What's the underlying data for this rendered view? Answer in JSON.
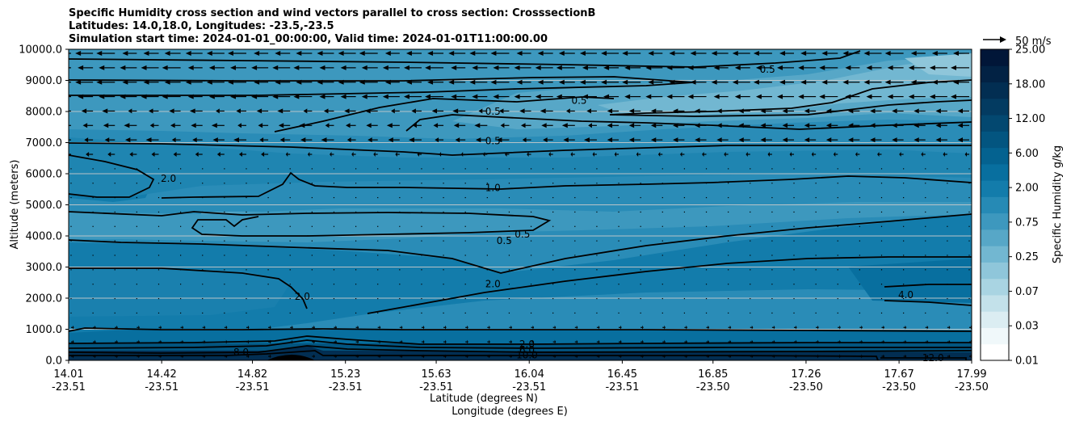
{
  "chart_data": {
    "type": "heatmap",
    "title_lines": [
      "Specific Humidity cross section and wind vectors parallel to cross section: CrosssectionB",
      "Latitudes: 14.0,18.0, Longitudes: -23.5,-23.5",
      "Simulation start time: 2024-01-01_00:00:00, Valid time: 2024-01-01T11:00:00.00"
    ],
    "xlabel_lat": "Latitude (degrees N)",
    "xlabel_lon": "Longitude (degrees E)",
    "ylabel": "Altitude (meters)",
    "x_ticks": [
      {
        "lat": "14.01",
        "lon": "-23.51"
      },
      {
        "lat": "14.42",
        "lon": "-23.51"
      },
      {
        "lat": "14.82",
        "lon": "-23.51"
      },
      {
        "lat": "15.23",
        "lon": "-23.51"
      },
      {
        "lat": "15.63",
        "lon": "-23.51"
      },
      {
        "lat": "16.04",
        "lon": "-23.51"
      },
      {
        "lat": "16.45",
        "lon": "-23.51"
      },
      {
        "lat": "16.85",
        "lon": "-23.50"
      },
      {
        "lat": "17.26",
        "lon": "-23.50"
      },
      {
        "lat": "17.67",
        "lon": "-23.50"
      },
      {
        "lat": "17.99",
        "lon": "-23.50"
      }
    ],
    "y_ticks": [
      "0.0",
      "1000.0",
      "2000.0",
      "3000.0",
      "4000.0",
      "5000.0",
      "6000.0",
      "7000.0",
      "8000.0",
      "9000.0",
      "10000.0"
    ],
    "ylim": [
      0,
      10000
    ],
    "grid": "horizontal",
    "colorbar": {
      "label": "Specific Humidity g/kg",
      "ticks": [
        "0.01",
        "0.03",
        "0.07",
        "0.25",
        "0.75",
        "2.00",
        "6.00",
        "12.00",
        "18.00",
        "25.00"
      ],
      "colors": [
        "#ffffff",
        "#f0f8fa",
        "#dbedf2",
        "#c3e1ea",
        "#a9d4e2",
        "#8fc6da",
        "#72b7d1",
        "#57a7c7",
        "#3d98be",
        "#268ab5",
        "#137cab",
        "#086f9f",
        "#046290",
        "#035580",
        "#034870",
        "#033b61",
        "#022e52",
        "#022244",
        "#011638"
      ]
    },
    "quiver_key": "50 m/s",
    "contour_labels": [
      {
        "text": "0.5",
        "lat": 15.88,
        "alt": 8000
      },
      {
        "text": "0.5",
        "lat": 16.26,
        "alt": 8350
      },
      {
        "text": "0.5",
        "lat": 17.09,
        "alt": 9350
      },
      {
        "text": "0.5",
        "lat": 15.88,
        "alt": 7050
      },
      {
        "text": "1.0",
        "lat": 15.88,
        "alt": 5550
      },
      {
        "text": "2.0",
        "lat": 14.45,
        "alt": 5850
      },
      {
        "text": "0.5",
        "lat": 15.93,
        "alt": 3850
      },
      {
        "text": "0.5",
        "lat": 16.01,
        "alt": 4050
      },
      {
        "text": "2.0",
        "lat": 15.88,
        "alt": 2450
      },
      {
        "text": "2.0",
        "lat": 15.04,
        "alt": 2050
      },
      {
        "text": "4.0",
        "lat": 17.7,
        "alt": 2100
      },
      {
        "text": "2.0",
        "lat": 16.03,
        "alt": 520
      },
      {
        "text": "6.0",
        "lat": 16.03,
        "alt": 340
      },
      {
        "text": "8.0",
        "lat": 14.77,
        "alt": 260
      },
      {
        "text": "12.0",
        "lat": 17.82,
        "alt": 80
      },
      {
        "text": "10.0",
        "lat": 16.03,
        "alt": 170
      }
    ]
  }
}
